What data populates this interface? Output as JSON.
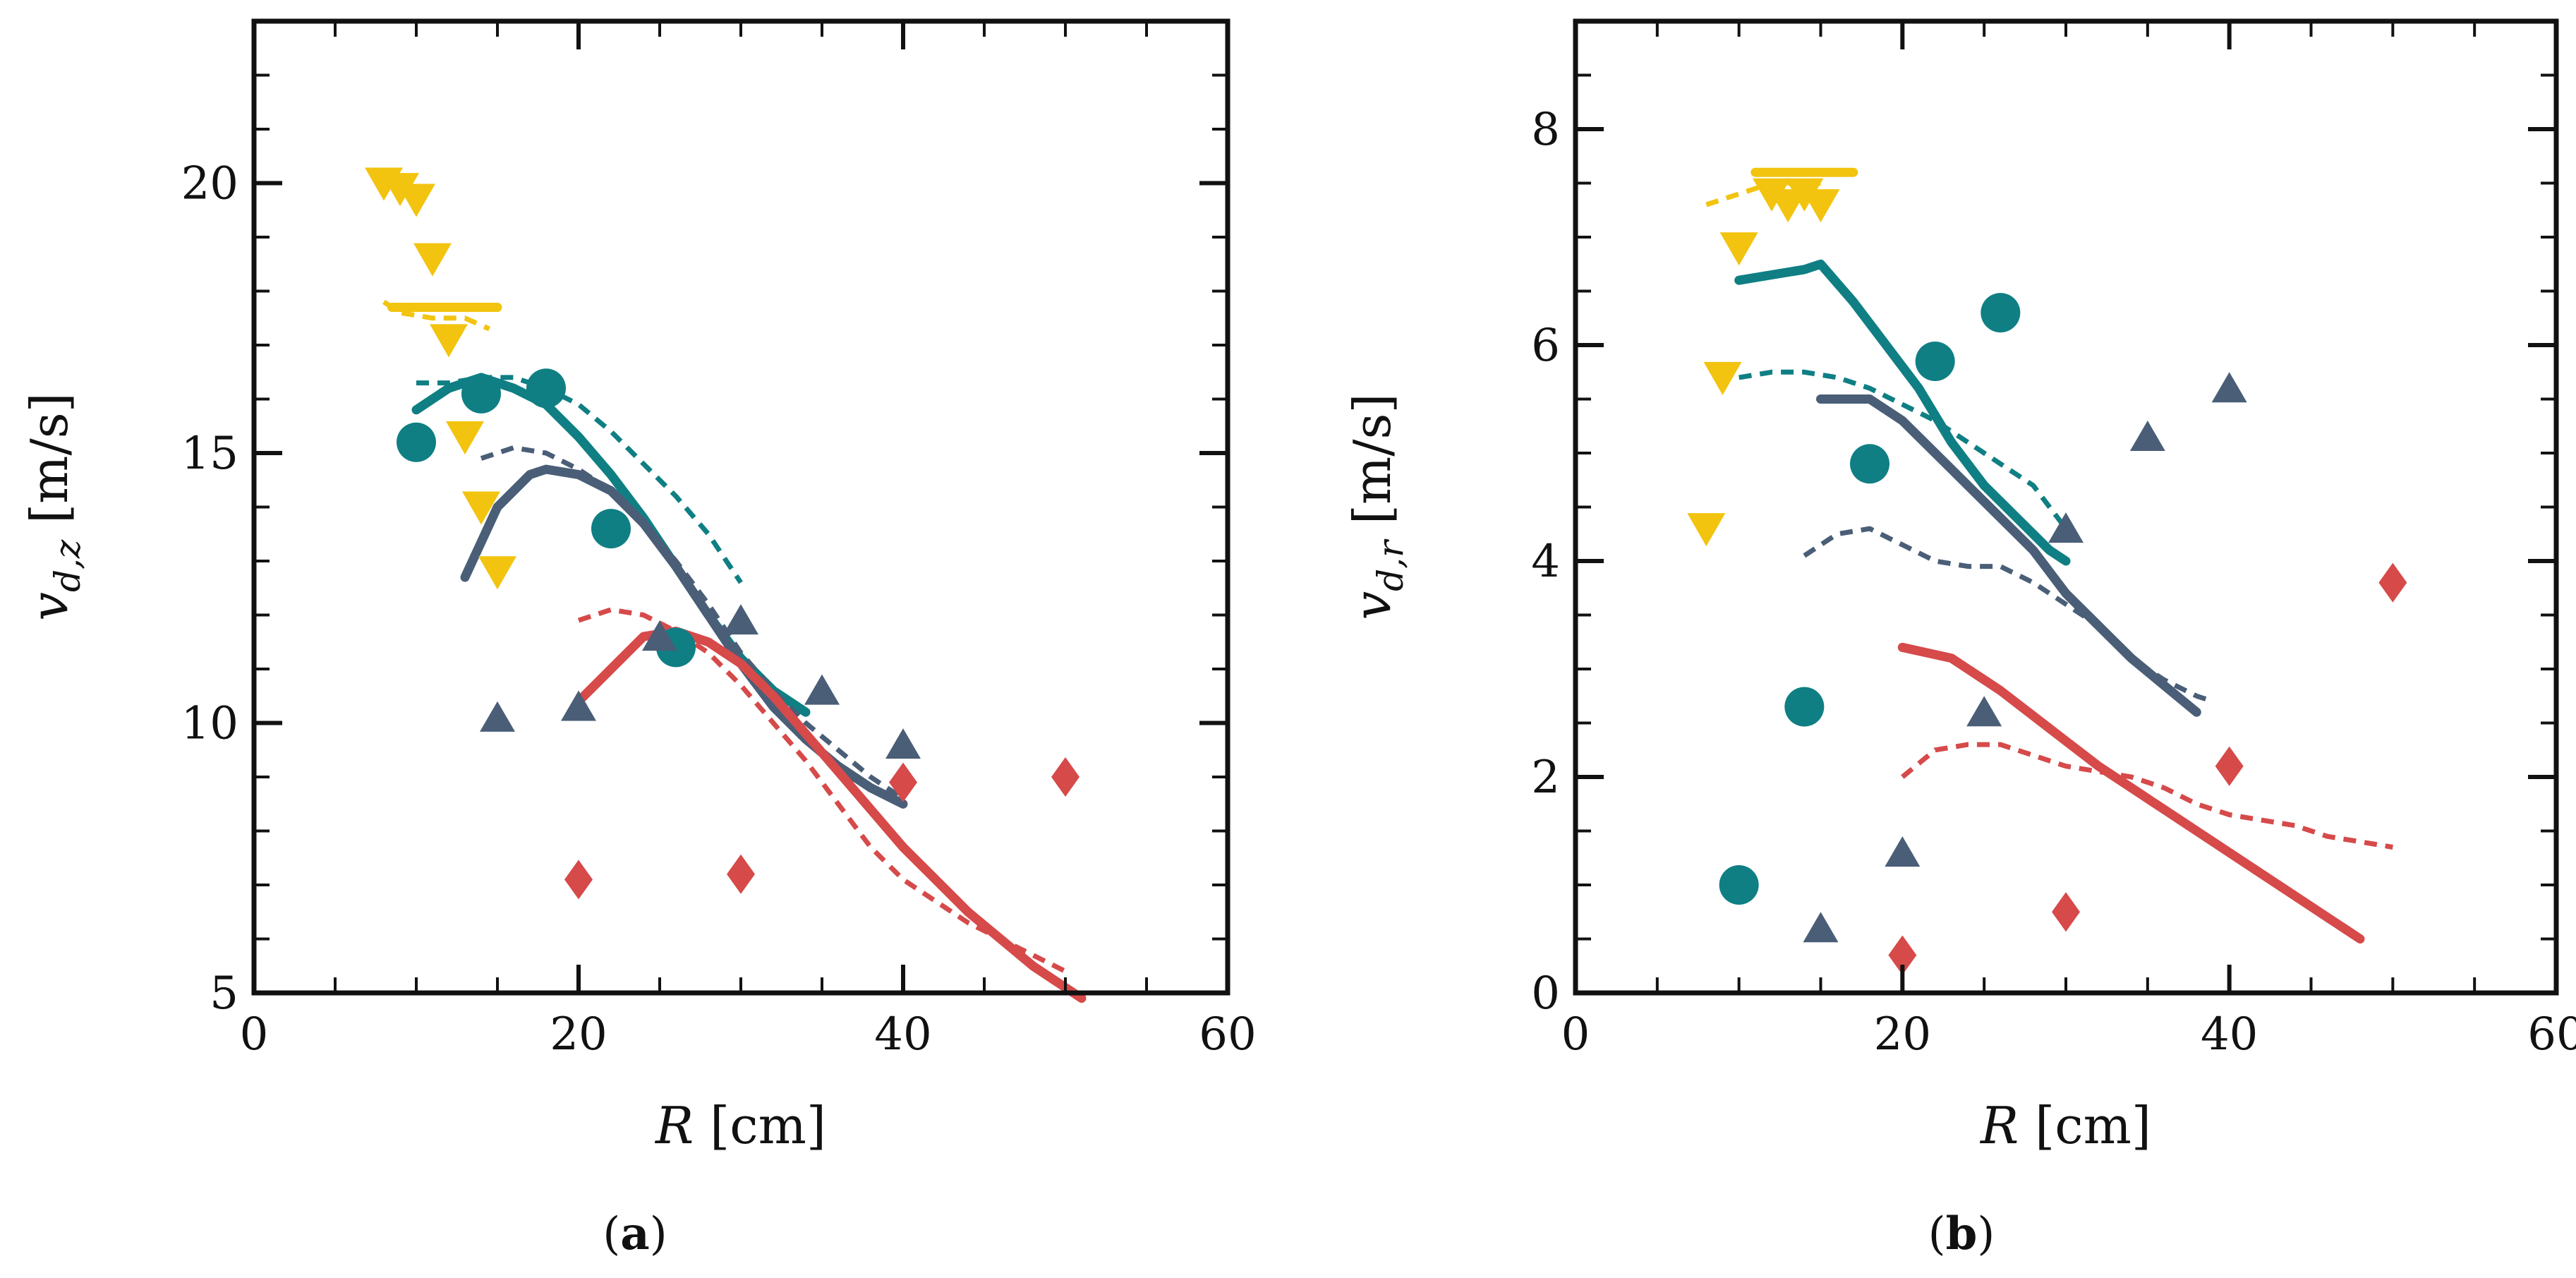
{
  "colors": {
    "yellow": "#f2c40f",
    "teal": "#0f7f84",
    "slate": "#4a5e77",
    "red": "#d64a4a",
    "axis": "#111111"
  },
  "chart_data": [
    {
      "type": "line",
      "panel_label_pre": "(",
      "panel_label_letter": "a",
      "panel_label_post": ")",
      "xlabel_var": "R",
      "xlabel_unit": " [cm]",
      "ylabel_var": "v",
      "ylabel_sub": "d,z",
      "ylabel_unit": " [m/s]",
      "xlim": [
        0,
        60
      ],
      "ylim": [
        5,
        23
      ],
      "xticks": [
        0,
        20,
        40,
        60
      ],
      "yticks": [
        5,
        10,
        15,
        20
      ],
      "xminor": 5,
      "yminor": 1,
      "lines": [
        {
          "color": "yellow",
          "dashed": false,
          "x": [
            8.5,
            15
          ],
          "y": [
            17.7,
            17.7
          ]
        },
        {
          "color": "yellow",
          "dashed": true,
          "x": [
            8,
            9,
            11,
            13,
            14.5
          ],
          "y": [
            17.8,
            17.6,
            17.5,
            17.5,
            17.3
          ]
        },
        {
          "color": "teal",
          "dashed": false,
          "x": [
            10,
            12,
            14,
            16,
            18,
            20,
            22,
            24,
            26,
            28,
            30,
            32,
            34
          ],
          "y": [
            15.8,
            16.2,
            16.4,
            16.2,
            15.9,
            15.3,
            14.6,
            13.8,
            12.9,
            12.0,
            11.2,
            10.6,
            10.2
          ]
        },
        {
          "color": "teal",
          "dashed": true,
          "x": [
            10,
            12,
            14,
            16,
            18,
            20,
            22,
            24,
            26,
            28,
            30
          ],
          "y": [
            16.3,
            16.3,
            16.4,
            16.4,
            16.2,
            15.9,
            15.4,
            14.8,
            14.2,
            13.5,
            12.6
          ]
        },
        {
          "color": "slate",
          "dashed": false,
          "x": [
            13,
            15,
            17,
            18,
            20,
            22,
            24,
            26,
            28,
            30,
            32,
            34,
            36,
            38,
            40
          ],
          "y": [
            12.7,
            14.0,
            14.6,
            14.7,
            14.6,
            14.3,
            13.7,
            12.9,
            12.0,
            11.1,
            10.3,
            9.7,
            9.2,
            8.8,
            8.5
          ]
        },
        {
          "color": "slate",
          "dashed": true,
          "x": [
            14,
            16,
            18,
            20,
            22,
            24,
            26,
            28,
            30,
            32,
            34,
            36,
            38,
            40
          ],
          "y": [
            14.9,
            15.1,
            15.0,
            14.7,
            14.3,
            13.7,
            13.0,
            12.2,
            11.3,
            10.6,
            10.0,
            9.5,
            9.0,
            8.6
          ]
        },
        {
          "color": "red",
          "dashed": false,
          "x": [
            20,
            22,
            24,
            26,
            28,
            30,
            32,
            34,
            36,
            38,
            40,
            42,
            44,
            46,
            48,
            50,
            51
          ],
          "y": [
            10.4,
            11.0,
            11.6,
            11.7,
            11.5,
            11.1,
            10.5,
            9.8,
            9.1,
            8.4,
            7.7,
            7.1,
            6.5,
            6.0,
            5.5,
            5.1,
            4.9
          ]
        },
        {
          "color": "red",
          "dashed": true,
          "x": [
            20,
            22,
            24,
            26,
            28,
            30,
            32,
            34,
            36,
            38,
            40,
            42,
            44,
            46,
            48,
            50
          ],
          "y": [
            11.9,
            12.1,
            12.0,
            11.7,
            11.3,
            10.7,
            10.0,
            9.3,
            8.5,
            7.7,
            7.1,
            6.7,
            6.3,
            6.0,
            5.7,
            5.4
          ]
        }
      ],
      "points": [
        {
          "color": "yellow",
          "marker": "triangle-down",
          "x": [
            8,
            9,
            10,
            11,
            12,
            13,
            14,
            15
          ],
          "y": [
            20.0,
            19.9,
            19.7,
            18.6,
            17.1,
            15.3,
            14.0,
            12.8
          ]
        },
        {
          "color": "teal",
          "marker": "circle",
          "x": [
            10,
            14,
            18,
            22,
            26
          ],
          "y": [
            15.2,
            16.1,
            16.2,
            13.6,
            11.4
          ]
        },
        {
          "color": "slate",
          "marker": "triangle-up",
          "x": [
            15,
            20,
            25,
            30,
            35,
            40
          ],
          "y": [
            10.1,
            10.3,
            11.6,
            11.9,
            10.6,
            9.6
          ]
        },
        {
          "color": "red",
          "marker": "diamond",
          "x": [
            20,
            30,
            40,
            50
          ],
          "y": [
            7.1,
            7.2,
            8.9,
            9.0
          ]
        }
      ]
    },
    {
      "type": "line",
      "panel_label_pre": "(",
      "panel_label_letter": "b",
      "panel_label_post": ")",
      "xlabel_var": "R",
      "xlabel_unit": " [cm]",
      "ylabel_var": "v",
      "ylabel_sub": "d,r",
      "ylabel_unit": " [m/s]",
      "xlim": [
        0,
        60
      ],
      "ylim": [
        0,
        9
      ],
      "xticks": [
        0,
        20,
        40,
        60
      ],
      "yticks": [
        0,
        2,
        4,
        6,
        8
      ],
      "xminor": 5,
      "yminor": 0.5,
      "lines": [
        {
          "color": "yellow",
          "dashed": false,
          "x": [
            11,
            17
          ],
          "y": [
            7.6,
            7.6
          ]
        },
        {
          "color": "yellow",
          "dashed": true,
          "x": [
            8,
            9,
            10,
            12,
            14,
            15
          ],
          "y": [
            7.3,
            7.35,
            7.4,
            7.5,
            7.5,
            7.5
          ]
        },
        {
          "color": "teal",
          "dashed": false,
          "x": [
            10,
            12,
            14,
            15,
            17,
            19,
            21,
            23,
            25,
            27,
            29,
            30
          ],
          "y": [
            6.6,
            6.65,
            6.7,
            6.75,
            6.4,
            6.0,
            5.6,
            5.1,
            4.7,
            4.4,
            4.1,
            4.0
          ]
        },
        {
          "color": "teal",
          "dashed": true,
          "x": [
            10,
            12,
            14,
            16,
            18,
            20,
            22,
            24,
            26,
            28,
            30
          ],
          "y": [
            5.7,
            5.75,
            5.75,
            5.7,
            5.6,
            5.45,
            5.3,
            5.1,
            4.9,
            4.7,
            4.3
          ]
        },
        {
          "color": "slate",
          "dashed": false,
          "x": [
            15,
            18,
            20,
            22,
            24,
            26,
            28,
            30,
            32,
            34,
            36,
            38
          ],
          "y": [
            5.5,
            5.5,
            5.3,
            5.0,
            4.7,
            4.4,
            4.1,
            3.7,
            3.4,
            3.1,
            2.85,
            2.6
          ]
        },
        {
          "color": "slate",
          "dashed": true,
          "x": [
            14,
            16,
            18,
            20,
            22,
            24,
            26,
            28,
            30,
            32,
            34,
            36,
            38,
            39
          ],
          "y": [
            4.05,
            4.25,
            4.3,
            4.15,
            4.0,
            3.95,
            3.95,
            3.8,
            3.6,
            3.4,
            3.1,
            2.9,
            2.75,
            2.7
          ]
        },
        {
          "color": "red",
          "dashed": false,
          "x": [
            20,
            23,
            26,
            29,
            32,
            35,
            38,
            41,
            44,
            47,
            48
          ],
          "y": [
            3.2,
            3.1,
            2.8,
            2.45,
            2.1,
            1.8,
            1.5,
            1.2,
            0.9,
            0.6,
            0.5
          ]
        },
        {
          "color": "red",
          "dashed": true,
          "x": [
            20,
            22,
            24,
            26,
            28,
            30,
            32,
            34,
            36,
            38,
            40,
            42,
            44,
            46,
            48,
            50
          ],
          "y": [
            2.0,
            2.25,
            2.3,
            2.3,
            2.2,
            2.1,
            2.05,
            2.0,
            1.9,
            1.75,
            1.65,
            1.6,
            1.55,
            1.45,
            1.4,
            1.35
          ]
        }
      ],
      "points": [
        {
          "color": "yellow",
          "marker": "triangle-down",
          "x": [
            8,
            9,
            10,
            12,
            13,
            14,
            15
          ],
          "y": [
            4.3,
            5.7,
            6.9,
            7.4,
            7.3,
            7.4,
            7.3
          ]
        },
        {
          "color": "teal",
          "marker": "circle",
          "x": [
            10,
            14,
            18,
            22,
            26
          ],
          "y": [
            1.0,
            2.65,
            4.9,
            5.85,
            6.3
          ]
        },
        {
          "color": "slate",
          "marker": "triangle-up",
          "x": [
            15,
            20,
            25,
            30,
            35,
            40
          ],
          "y": [
            0.6,
            1.3,
            2.6,
            4.3,
            5.15,
            5.6
          ]
        },
        {
          "color": "red",
          "marker": "diamond",
          "x": [
            20,
            30,
            40,
            50
          ],
          "y": [
            0.35,
            0.75,
            2.1,
            3.8
          ]
        }
      ]
    }
  ]
}
